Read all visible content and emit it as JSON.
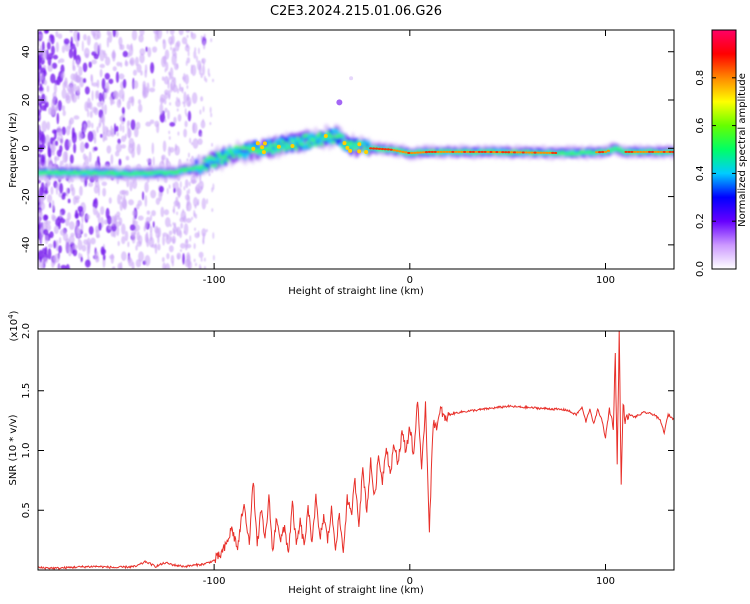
{
  "title": "C2E3.2024.215.01.06.G26",
  "chart_data": [
    {
      "type": "heatmap",
      "xlabel": "Height of straight line (km)",
      "ylabel": "Frequency (Hz)",
      "xlim": [
        -190,
        135
      ],
      "ylim": [
        -50,
        49
      ],
      "x_ticks": [
        -100,
        0,
        100
      ],
      "x_tick_labels": [
        "-100",
        "0",
        "100"
      ],
      "y_ticks": [
        -40,
        -20,
        0,
        20,
        40
      ],
      "y_tick_labels": [
        "-40",
        "-20",
        "0",
        "20",
        "40"
      ],
      "grid": false,
      "ridge": [
        {
          "x": -190,
          "y": -10
        },
        {
          "x": -160,
          "y": -10
        },
        {
          "x": -140,
          "y": -10.5
        },
        {
          "x": -120,
          "y": -10
        },
        {
          "x": -105,
          "y": -7
        },
        {
          "x": -100,
          "y": -5
        },
        {
          "x": -90,
          "y": -2
        },
        {
          "x": -75,
          "y": 0
        },
        {
          "x": -60,
          "y": 2
        },
        {
          "x": -45,
          "y": 4
        },
        {
          "x": -38,
          "y": 5
        },
        {
          "x": -30,
          "y": 1
        },
        {
          "x": -20,
          "y": 0
        },
        {
          "x": -10,
          "y": -0.5
        },
        {
          "x": 0,
          "y": -2
        },
        {
          "x": 10,
          "y": -1.5
        },
        {
          "x": 40,
          "y": -1.5
        },
        {
          "x": 80,
          "y": -2
        },
        {
          "x": 100,
          "y": -1.5
        },
        {
          "x": 105,
          "y": 0
        },
        {
          "x": 110,
          "y": -1.5
        },
        {
          "x": 135,
          "y": -1.5
        }
      ],
      "colorbar": {
        "label": "Normalized spectral amplitude",
        "range": [
          0,
          1
        ],
        "ticks": [
          0,
          0.2,
          0.4,
          0.6,
          0.8
        ],
        "tick_labels": [
          "0.0",
          "0.2",
          "0.4",
          "0.6",
          "0.8"
        ],
        "colors": [
          "#ffffff",
          "#cc99ff",
          "#6600ff",
          "#0000ff",
          "#00ccff",
          "#00ff66",
          "#66ff00",
          "#ffff00",
          "#ff8800",
          "#ff0000",
          "#ff0066"
        ]
      }
    },
    {
      "type": "line",
      "xlabel": "Height of straight line (km)",
      "ylabel": "SNR (10 * v/v)",
      "y_scale_note": "(x10",
      "y_scale_exp": "4",
      "y_scale_close": ")",
      "xlim": [
        -190,
        135
      ],
      "ylim": [
        0,
        20000
      ],
      "x_ticks": [
        -100,
        0,
        100
      ],
      "x_tick_labels": [
        "-100",
        "0",
        "100"
      ],
      "y_ticks": [
        5000,
        10000,
        15000,
        20000
      ],
      "y_tick_labels": [
        "0.5",
        "1.0",
        "1.5",
        "2.0"
      ],
      "grid": false,
      "series": [
        {
          "color": "#e8302a",
          "x": [
            -190,
            -180,
            -170,
            -160,
            -150,
            -140,
            -135,
            -130,
            -125,
            -120,
            -115,
            -110,
            -105,
            -100,
            -97,
            -94,
            -91,
            -88,
            -85,
            -82,
            -80,
            -78,
            -76,
            -74,
            -72,
            -70,
            -68,
            -66,
            -64,
            -62,
            -60,
            -58,
            -56,
            -54,
            -52,
            -50,
            -48,
            -46,
            -44,
            -42,
            -40,
            -38,
            -36,
            -34,
            -32,
            -30,
            -28,
            -26,
            -24,
            -22,
            -20,
            -18,
            -16,
            -14,
            -12,
            -10,
            -8,
            -6,
            -4,
            -2,
            0,
            2,
            4,
            6,
            8,
            10,
            12,
            14,
            16,
            18,
            20,
            25,
            30,
            40,
            50,
            60,
            70,
            80,
            85,
            88,
            90,
            92,
            94,
            96,
            98,
            100,
            102,
            104,
            105,
            106,
            107,
            108,
            109,
            110,
            112,
            115,
            120,
            125,
            128,
            130,
            132,
            135
          ],
          "y": [
            200,
            150,
            250,
            300,
            200,
            300,
            700,
            300,
            600,
            400,
            300,
            400,
            500,
            800,
            1200,
            2000,
            3500,
            1800,
            5500,
            2500,
            7500,
            2000,
            5000,
            2500,
            6000,
            1500,
            4500,
            2500,
            3500,
            1500,
            5500,
            2000,
            4000,
            2000,
            5000,
            2500,
            6000,
            2500,
            4500,
            2500,
            5000,
            2000,
            4500,
            1500,
            6000,
            4500,
            7500,
            4000,
            8500,
            5000,
            9000,
            6000,
            9500,
            7500,
            10500,
            8000,
            10500,
            9000,
            11500,
            10000,
            12000,
            9500,
            14500,
            8000,
            14000,
            3500,
            12500,
            12000,
            13500,
            12500,
            13000,
            13200,
            13300,
            13500,
            13700,
            13600,
            13500,
            13400,
            13000,
            13600,
            12400,
            13500,
            12200,
            13400,
            12700,
            11000,
            13500,
            12000,
            18000,
            9000,
            20000,
            7000,
            14000,
            12500,
            13000,
            12800,
            13200,
            13000,
            12500,
            11500,
            13000,
            12600
          ]
        }
      ]
    }
  ]
}
